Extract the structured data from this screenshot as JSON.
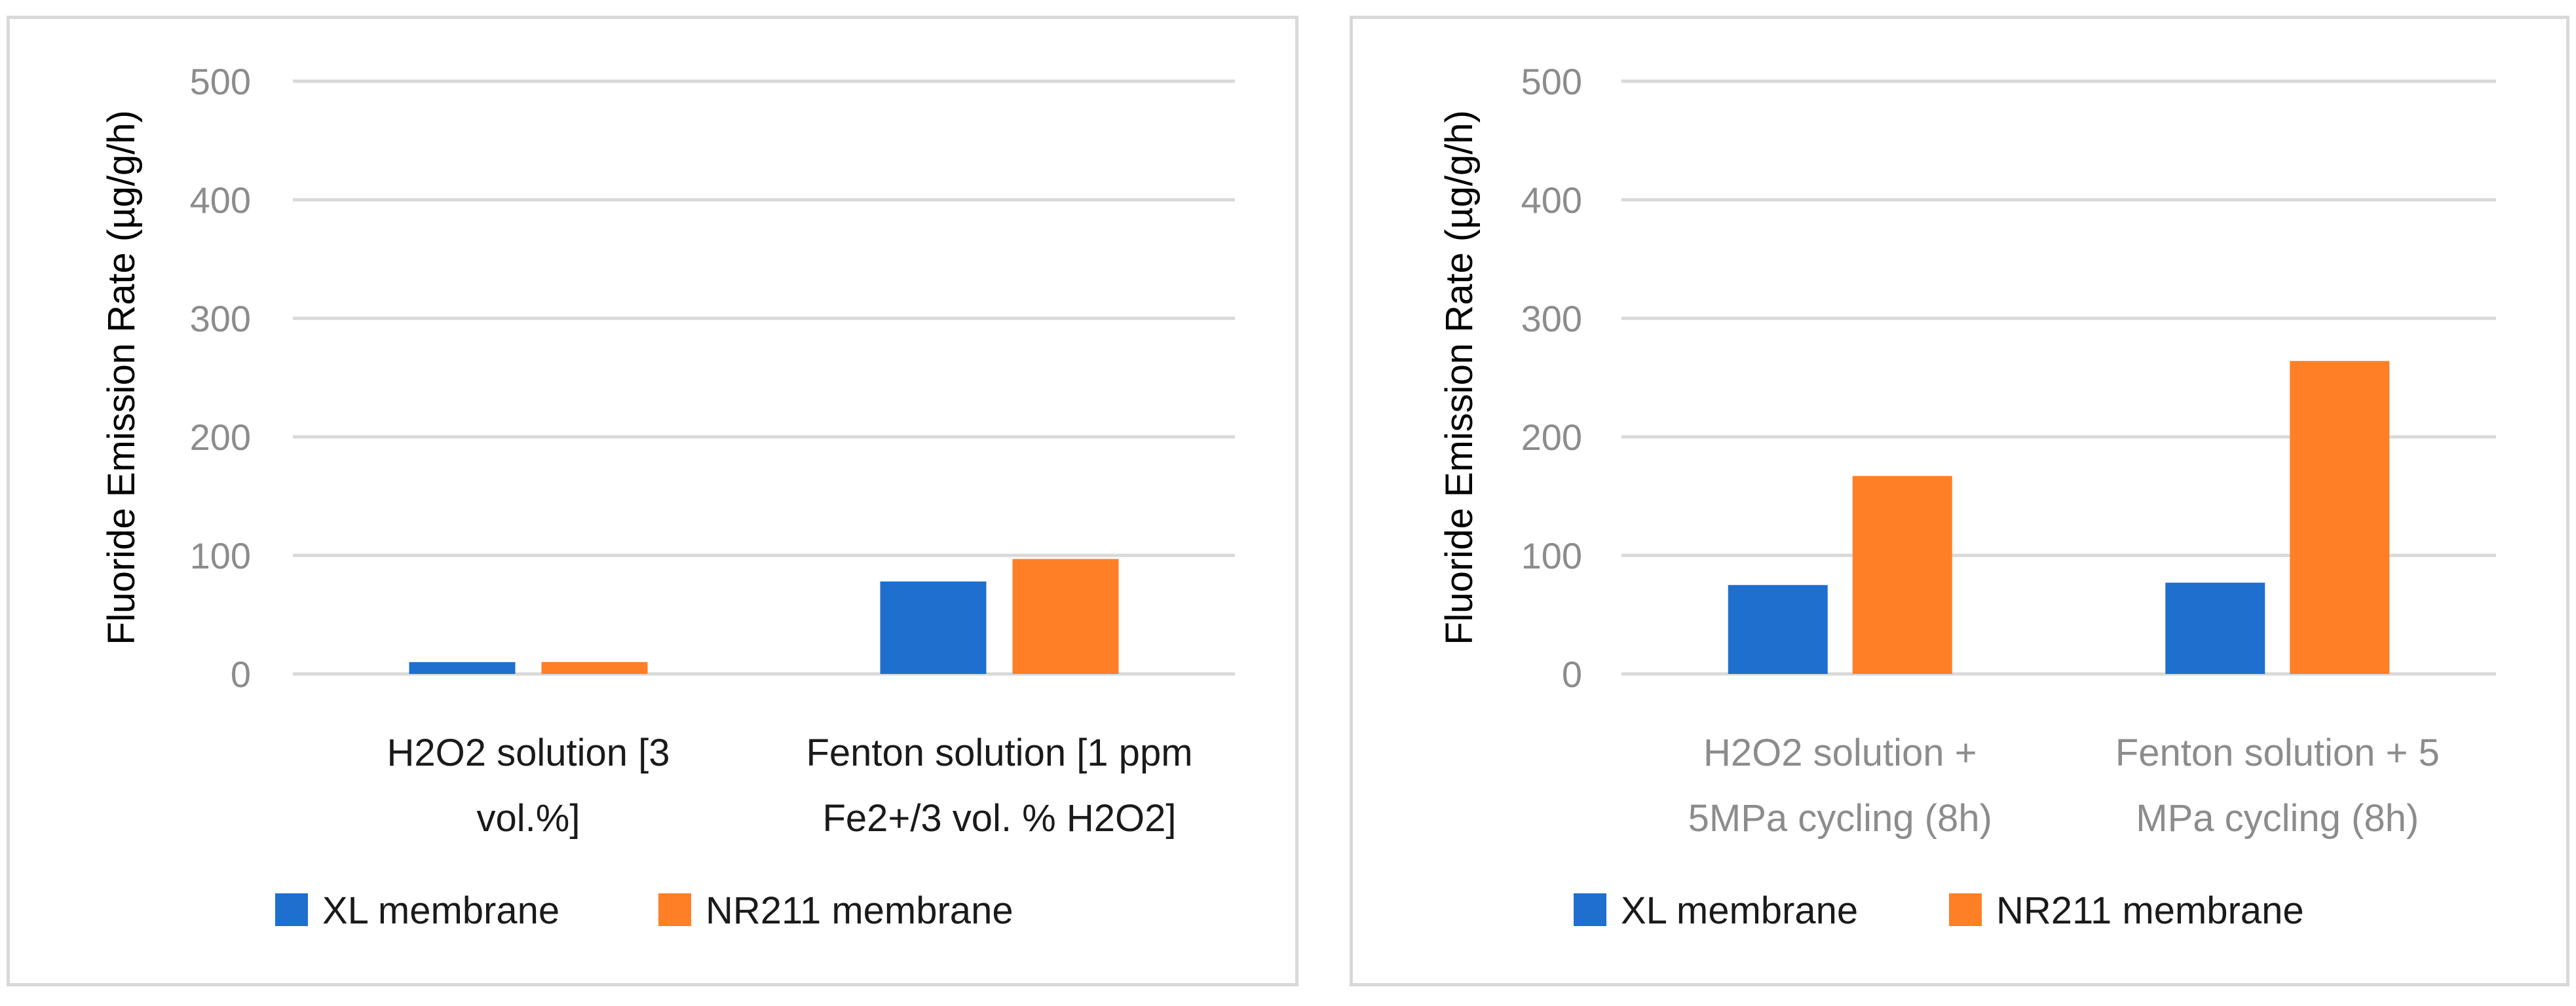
{
  "colors": {
    "xl": "#1f6fcf",
    "nr211": "#ff7f27",
    "grid": "#d9d9d9",
    "tick": "#8c8c8c"
  },
  "chart_data": [
    {
      "type": "bar",
      "ylabel": "Fluoride Emission Rate (µg/g/h)",
      "xlabel": "",
      "ylim": [
        0,
        500
      ],
      "yticks": [
        0,
        100,
        200,
        300,
        400,
        500
      ],
      "grid": true,
      "legend": "bottom",
      "categories": [
        [
          "H2O2  solution [3",
          "vol.%]"
        ],
        [
          "Fenton solution [1 ppm",
          "Fe2+/3 vol. % H2O2]"
        ]
      ],
      "series": [
        {
          "name": "XL membrane",
          "color": "#1f6fcf",
          "values": [
            10,
            78
          ]
        },
        {
          "name": "NR211 membrane",
          "color": "#ff7f27",
          "values": [
            10,
            97
          ]
        }
      ]
    },
    {
      "type": "bar",
      "ylabel": "Fluoride Emission Rate (µg/g/h)",
      "xlabel": "",
      "ylim": [
        0,
        500
      ],
      "yticks": [
        0,
        100,
        200,
        300,
        400,
        500
      ],
      "grid": true,
      "legend": "bottom",
      "categories": [
        [
          "H2O2  solution +",
          "5MPa cycling (8h)"
        ],
        [
          "Fenton solution + 5",
          "MPa cycling (8h)"
        ]
      ],
      "series": [
        {
          "name": "XL membrane",
          "color": "#1f6fcf",
          "values": [
            75,
            77
          ]
        },
        {
          "name": "NR211 membrane",
          "color": "#ff7f27",
          "values": [
            167,
            264
          ]
        }
      ]
    }
  ]
}
